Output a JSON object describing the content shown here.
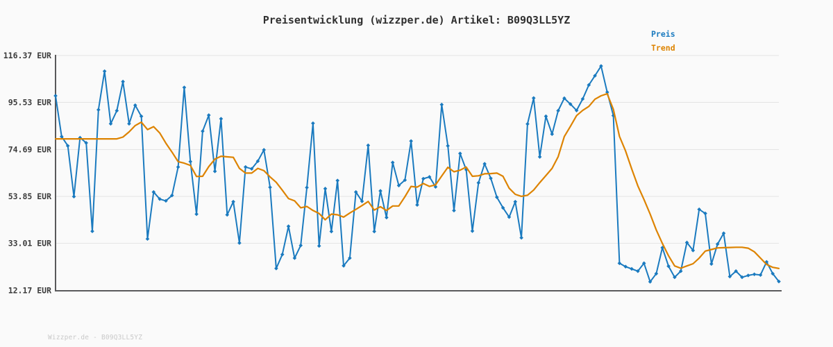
{
  "footer": {
    "watermark": "Wizzper.de - B09Q3LL5YZ"
  },
  "chart_data": {
    "type": "line",
    "title": "Preisentwicklung (wizzper.de) Artikel: B09Q3LL5YZ",
    "xlabel": "",
    "ylabel": "",
    "currency": "EUR",
    "grid": true,
    "legend_position": "top-right",
    "x_tick_labels": "none",
    "ylim": [
      12.17,
      116.37
    ],
    "y_ticks": [
      {
        "label": "116.37 EUR",
        "value": 116.37
      },
      {
        "label": "95.53 EUR",
        "value": 95.53
      },
      {
        "label": "74.69 EUR",
        "value": 74.69
      },
      {
        "label": "53.85 EUR",
        "value": 53.85
      },
      {
        "label": "33.01 EUR",
        "value": 33.01
      },
      {
        "label": "12.17 EUR",
        "value": 12.17
      }
    ],
    "colors": {
      "price": "#1a7abf",
      "trend": "#dd8300",
      "axis": "#59595b",
      "gridline": "#e4e4e4",
      "background": "#fafafa",
      "title_text": "#303030",
      "tick_text": "#3b3b3b",
      "watermark_text": "#c9c9c9"
    },
    "series": [
      {
        "name": "Preis",
        "color": "#1a7abf",
        "marker": "diamond",
        "values": [
          98.5,
          80.4,
          76.3,
          53.8,
          79.9,
          77.6,
          38.4,
          92.3,
          109.4,
          86.1,
          91.9,
          104.8,
          86.1,
          94.3,
          89.4,
          35.0,
          55.8,
          52.7,
          51.9,
          54.3,
          66.9,
          102.2,
          69.3,
          46.0,
          82.8,
          89.9,
          65.0,
          88.3,
          45.7,
          51.5,
          33.2,
          66.9,
          66.1,
          69.5,
          74.5,
          57.9,
          21.9,
          28.1,
          40.6,
          26.5,
          32.1,
          57.8,
          86.3,
          31.9,
          57.3,
          38.3,
          60.9,
          23.1,
          26.5,
          55.8,
          51.7,
          76.5,
          38.3,
          56.3,
          44.5,
          68.9,
          58.7,
          61.1,
          78.4,
          50.1,
          61.7,
          62.5,
          58.1,
          94.6,
          76.3,
          47.6,
          72.9,
          65.7,
          38.5,
          59.9,
          68.3,
          61.9,
          53.5,
          48.8,
          44.7,
          51.5,
          35.5,
          86.0,
          97.5,
          71.4,
          89.4,
          81.5,
          91.9,
          97.4,
          94.8,
          92.0,
          97.1,
          103.3,
          107.4,
          111.7,
          100.1,
          89.7,
          24.2,
          22.7,
          21.7,
          20.7,
          24.2,
          16.0,
          19.6,
          31.1,
          22.9,
          18.0,
          20.7,
          33.4,
          29.9,
          48.1,
          46.3,
          23.9,
          32.7,
          37.5,
          18.3,
          20.7,
          18.0,
          18.8,
          19.3,
          19.0,
          24.8,
          19.6,
          16.1
        ]
      },
      {
        "name": "Trend",
        "color": "#dd8300",
        "marker": "none",
        "values": [
          79.4,
          79.4,
          79.4,
          79.4,
          79.4,
          79.4,
          79.4,
          79.4,
          79.4,
          79.4,
          79.4,
          80.2,
          82.5,
          85.3,
          86.8,
          83.5,
          84.8,
          82.0,
          77.5,
          73.5,
          69.3,
          68.6,
          67.6,
          62.7,
          62.8,
          67.1,
          70.4,
          71.7,
          71.4,
          71.2,
          66.3,
          64.2,
          64.2,
          66.3,
          65.3,
          62.5,
          60.1,
          56.6,
          52.9,
          51.9,
          48.8,
          49.4,
          47.6,
          46.3,
          43.5,
          46.0,
          45.7,
          44.7,
          46.5,
          48.1,
          49.8,
          51.6,
          47.8,
          49.3,
          47.6,
          49.6,
          49.6,
          53.7,
          58.3,
          58.0,
          59.6,
          58.3,
          59.0,
          62.9,
          66.8,
          64.8,
          65.5,
          66.9,
          62.8,
          63.0,
          63.9,
          64.0,
          64.2,
          62.8,
          57.5,
          54.8,
          53.9,
          54.4,
          56.7,
          60.0,
          63.1,
          66.3,
          71.5,
          80.4,
          85.0,
          89.7,
          92.0,
          93.8,
          97.0,
          98.5,
          99.4,
          92.5,
          80.5,
          74.0,
          66.0,
          58.5,
          52.5,
          46.0,
          39.0,
          33.0,
          27.5,
          23.0,
          22.0,
          23.0,
          24.0,
          26.5,
          29.6,
          30.3,
          31.0,
          31.1,
          31.2,
          31.3,
          31.3,
          30.9,
          29.3,
          26.5,
          23.7,
          22.4,
          21.9
        ]
      }
    ]
  }
}
